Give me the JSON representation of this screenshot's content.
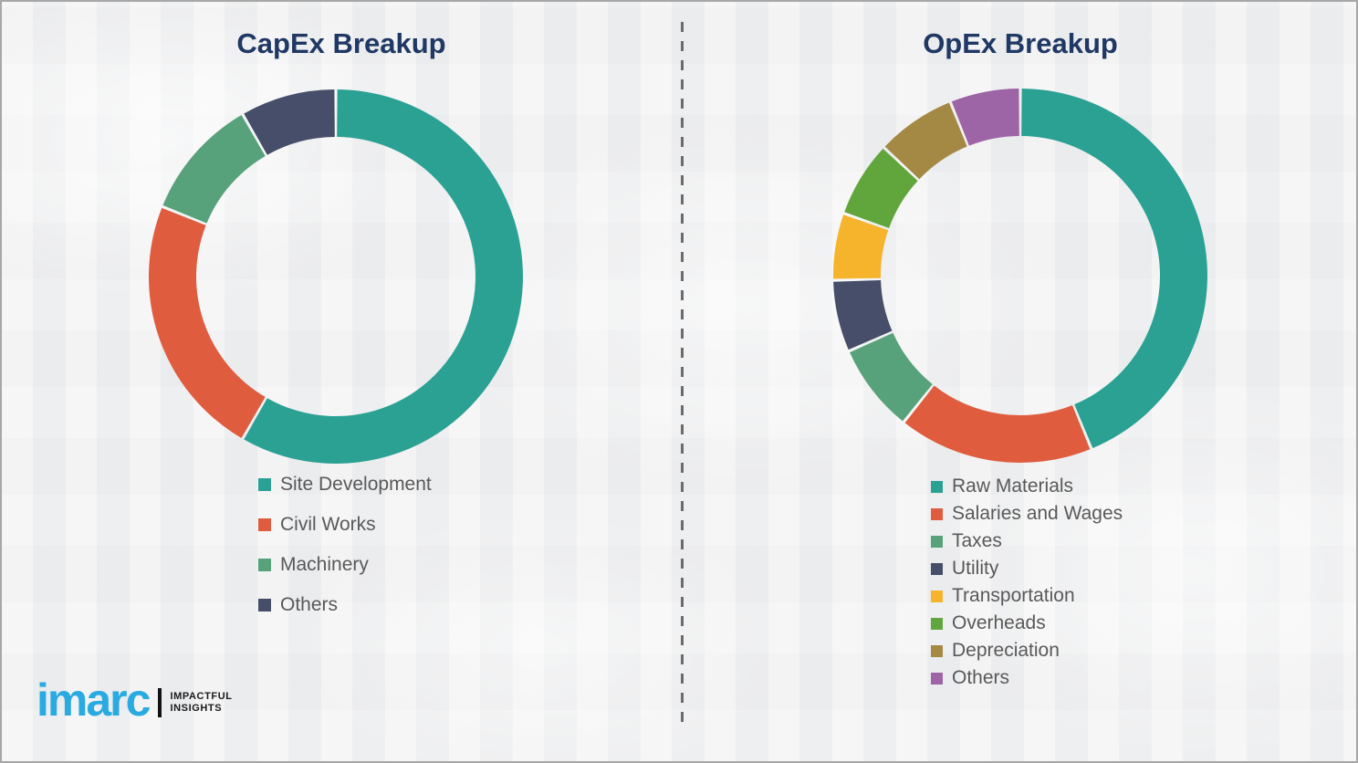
{
  "page": {
    "background_color": "#f1f1f2",
    "border_color": "#a7a7a7",
    "divider_color": "#6b6b6b",
    "title_color": "#1f3864",
    "legend_text_color": "#595959"
  },
  "chart_data": [
    {
      "type": "pie",
      "subtype": "donut",
      "title": "CapEx Breakup",
      "categories": [
        "Site Development",
        "Civil Works",
        "Machinery",
        "Others"
      ],
      "values": [
        58.3,
        22.8,
        10.6,
        8.3
      ],
      "colors": [
        "#2aa193",
        "#e05c3e",
        "#58a27b",
        "#464e69"
      ],
      "unit": "percent-of-total",
      "start_angle_deg": 0,
      "direction": "clockwise",
      "legend_position": "below-left"
    },
    {
      "type": "pie",
      "subtype": "donut",
      "title": "OpEx Breakup",
      "categories": [
        "Raw Materials",
        "Salaries and Wages",
        "Taxes",
        "Utility",
        "Transportation",
        "Overheads",
        "Depreciation",
        "Others"
      ],
      "values": [
        43.8,
        16.9,
        7.7,
        6.2,
        5.8,
        6.6,
        6.9,
        6.1
      ],
      "colors": [
        "#2aa193",
        "#e05c3e",
        "#58a27b",
        "#464e69",
        "#f5b42c",
        "#61a63c",
        "#a38944",
        "#9d64a6"
      ],
      "unit": "percent-of-total",
      "start_angle_deg": 0,
      "direction": "clockwise",
      "legend_position": "below-left"
    }
  ],
  "logo": {
    "wordmark": "imarc",
    "wordmark_color": "#29abe2",
    "tagline_line1": "IMPACTFUL",
    "tagline_line2": "INSIGHTS"
  }
}
